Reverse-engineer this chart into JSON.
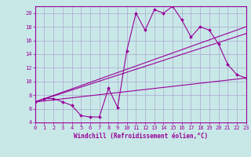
{
  "xlabel": "Windchill (Refroidissement éolien,°C)",
  "background_color": "#c8e8e8",
  "grid_color": "#aaaacc",
  "line_color": "#990099",
  "x_min": 0,
  "x_max": 23,
  "y_min": 4,
  "y_max": 21,
  "x_ticks": [
    0,
    1,
    2,
    3,
    4,
    5,
    6,
    7,
    8,
    9,
    10,
    11,
    12,
    13,
    14,
    15,
    16,
    17,
    18,
    19,
    20,
    21,
    22,
    23
  ],
  "y_ticks": [
    4,
    6,
    8,
    10,
    12,
    14,
    16,
    18,
    20
  ],
  "curve1_x": [
    0,
    1,
    2,
    3,
    4,
    5,
    6,
    7,
    8,
    9,
    10,
    11,
    12,
    13,
    14,
    15,
    16,
    17,
    18,
    19,
    20,
    21,
    22,
    23
  ],
  "curve1_y": [
    7.0,
    7.5,
    7.5,
    7.0,
    6.5,
    5.0,
    4.8,
    4.8,
    9.0,
    6.2,
    14.5,
    20.0,
    17.5,
    20.5,
    20.0,
    21.0,
    19.0,
    16.5,
    18.0,
    17.5,
    15.5,
    12.5,
    11.0,
    10.5
  ],
  "line2_x": [
    0,
    23
  ],
  "line2_y": [
    7.0,
    10.5
  ],
  "line3_x": [
    0,
    23
  ],
  "line3_y": [
    7.0,
    18.0
  ],
  "line4_x": [
    0,
    23
  ],
  "line4_y": [
    7.0,
    17.0
  ]
}
